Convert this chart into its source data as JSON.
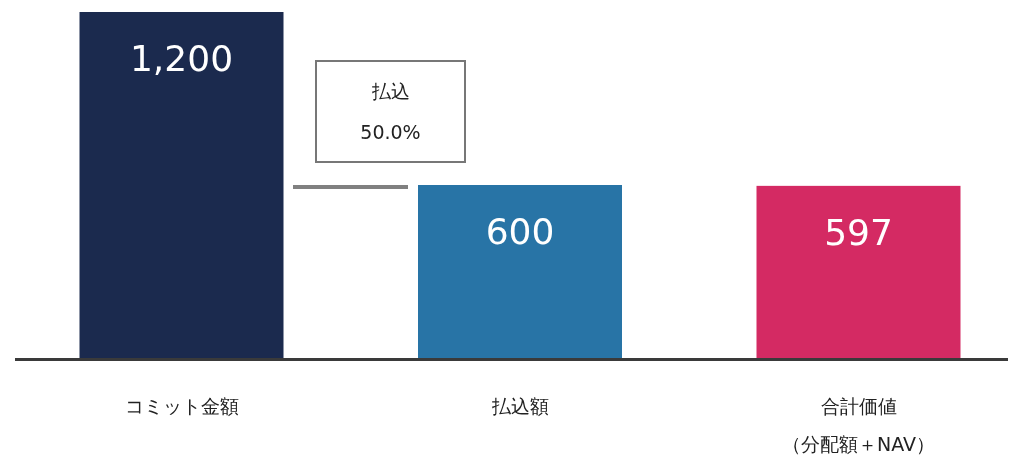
{
  "chart_data": {
    "type": "bar",
    "categories": [
      "コミット金額",
      "払込額",
      "合計価値（分配額＋NAV）"
    ],
    "values": [
      1200,
      600,
      597
    ],
    "value_labels": [
      "1,200",
      "600",
      "597"
    ],
    "colors": [
      "#1b2a4e",
      "#2874a6",
      "#d42a63"
    ],
    "annotations": [
      "払込",
      "50.0%"
    ]
  }
}
